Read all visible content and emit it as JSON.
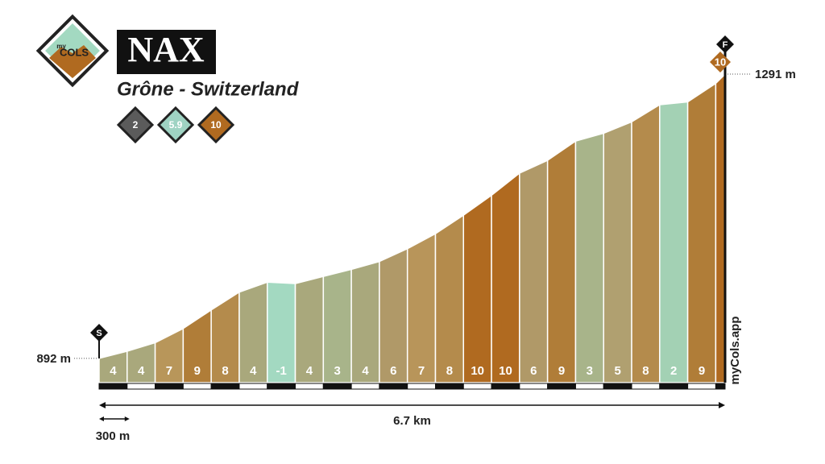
{
  "chart_data": {
    "type": "profile",
    "title": "NAX",
    "subtitle": "Grône - Switzerland",
    "logo": {
      "top": "my",
      "bottom": "COLS"
    },
    "watermark": "myCols.app",
    "badges": [
      {
        "label": "2",
        "color": "#5b5b5b"
      },
      {
        "label": "5.9",
        "color": "#9fd3c3"
      },
      {
        "label": "10",
        "color": "#b06a20"
      }
    ],
    "start_flag": "S",
    "end_flag": "F",
    "distance_label": "6.7 km",
    "scale_label": "300 m",
    "x": [
      0,
      0.3,
      0.6,
      0.9,
      1.2,
      1.5,
      1.8,
      2.1,
      2.4,
      2.7,
      3.0,
      3.3,
      3.6,
      3.9,
      4.2,
      4.5,
      4.8,
      5.1,
      5.4,
      5.7,
      6.0,
      6.3,
      6.6,
      6.7
    ],
    "elevations": [
      892,
      902,
      914,
      934,
      960,
      985,
      999,
      997,
      1007,
      1017,
      1028,
      1046,
      1067,
      1093,
      1121,
      1152,
      1170,
      1197,
      1208,
      1224,
      1248,
      1252,
      1278,
      1291
    ],
    "gradients": [
      4,
      4,
      7,
      9,
      8,
      4,
      -1,
      4,
      3,
      4,
      6,
      7,
      8,
      10,
      10,
      6,
      9,
      3,
      5,
      8,
      2,
      9,
      10
    ],
    "colors": [
      "#a9a87c",
      "#a9a87c",
      "#b8965a",
      "#b07d38",
      "#b48b4c",
      "#a9a87c",
      "#a3d9c1",
      "#a9a87c",
      "#a8b48a",
      "#a9a87c",
      "#b09968",
      "#b8955a",
      "#b48b4c",
      "#b06a20",
      "#b06a20",
      "#b09968",
      "#b07d38",
      "#a8b48a",
      "#b0a070",
      "#b48b4c",
      "#a3d1b4",
      "#b07d38",
      "#b06a20"
    ],
    "elevation_labels": [
      {
        "value": 892,
        "label": "892 m"
      },
      {
        "value": 1291,
        "label": "1291 m"
      }
    ],
    "xlim": [
      0,
      6.7
    ],
    "ylim": [
      858,
      1291
    ]
  }
}
